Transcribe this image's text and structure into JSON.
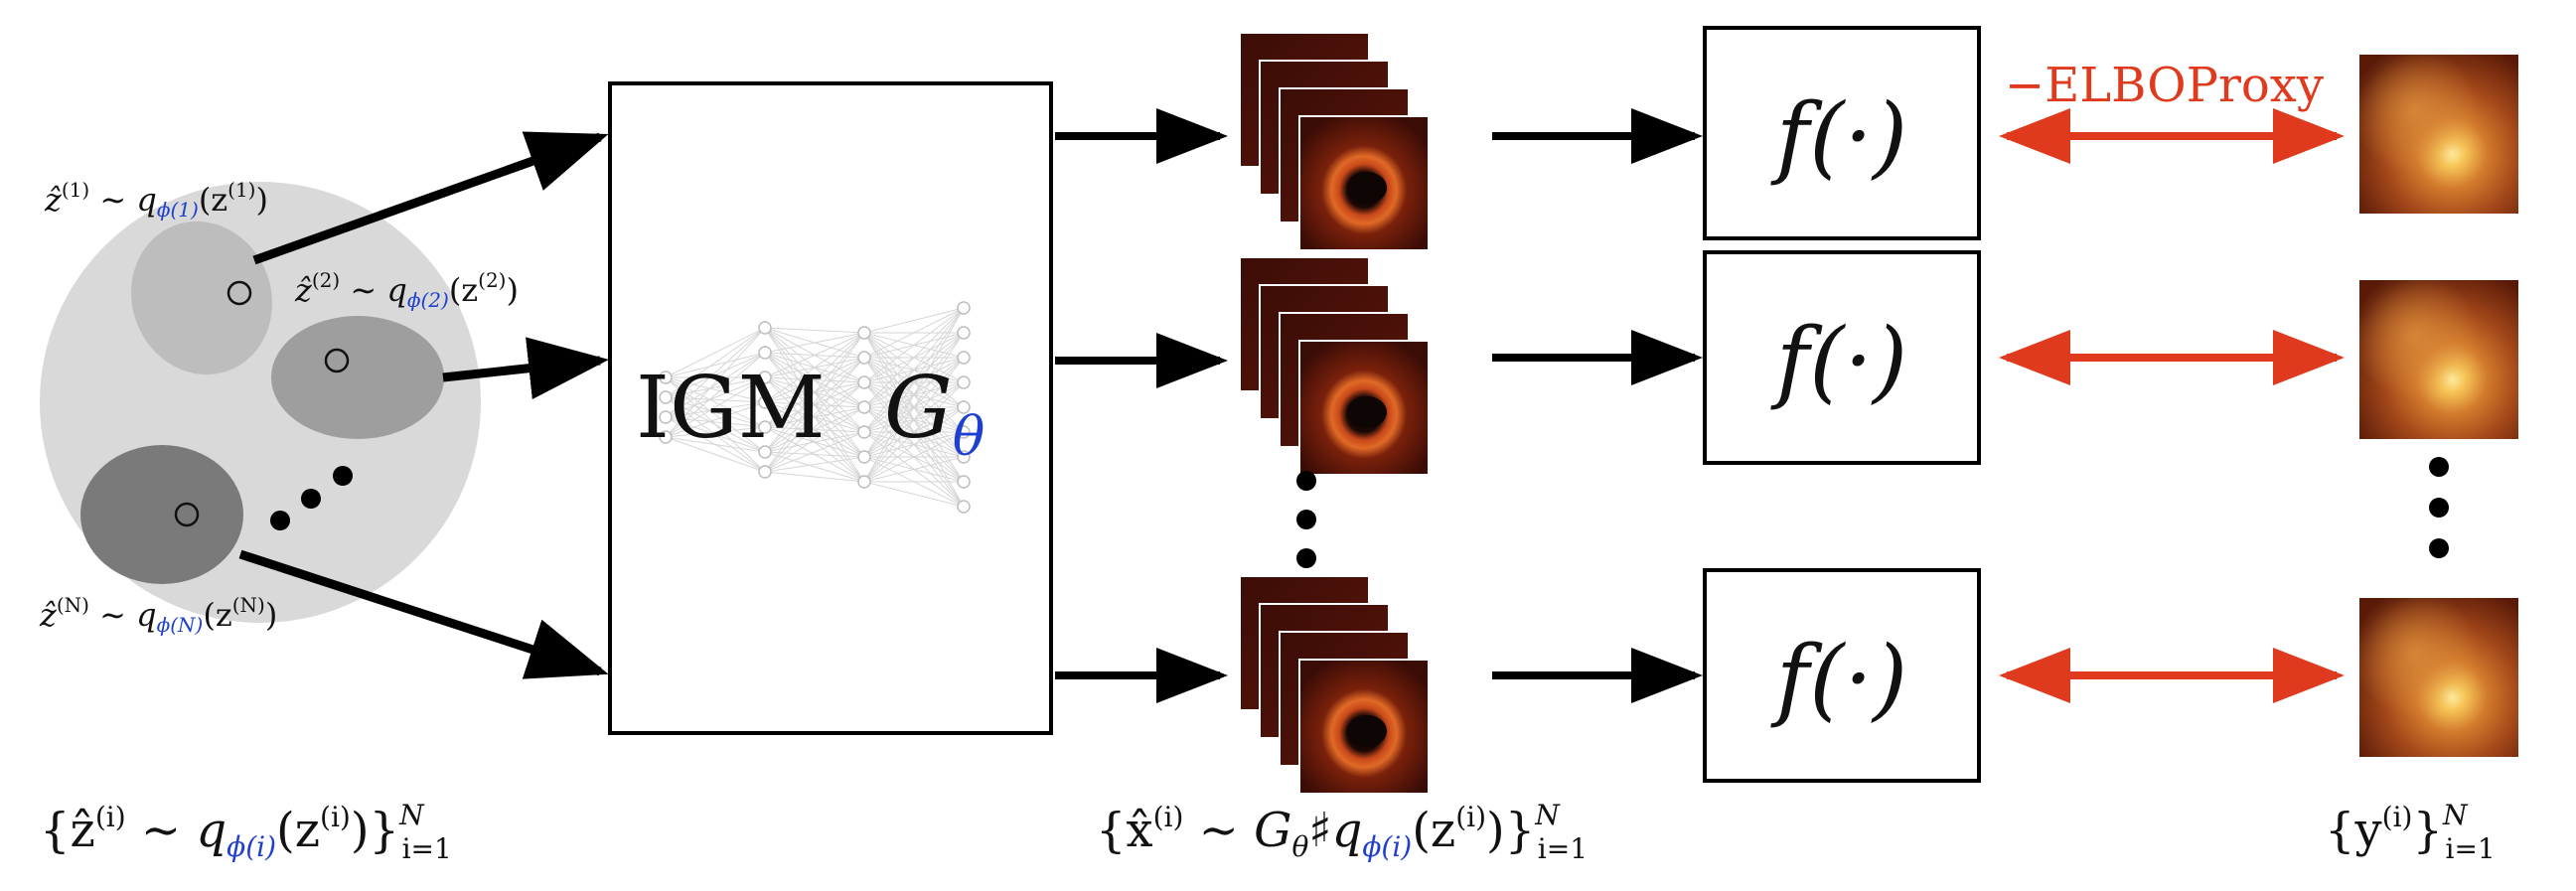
{
  "colors": {
    "arrow_black": "#000000",
    "arrow_red": "#e03a1e",
    "latent_bg": "#d9d9d9",
    "ellipse_1": "#bdbdbd",
    "ellipse_2": "#9e9e9e",
    "ellipse_3": "#7a7a7a",
    "phi_blue": "#1f3fd0"
  },
  "latent": {
    "label_1_pre": "ẑ",
    "label_1_sup": "(1)",
    "label_1_mid": " ∼ q",
    "label_1_phi": "ϕ(1)",
    "label_1_post": "(z",
    "label_1_post_sup": "(1)",
    "label_1_close": ")",
    "label_2_pre": "ẑ",
    "label_2_sup": "(2)",
    "label_2_mid": " ∼ q",
    "label_2_phi": "ϕ(2)",
    "label_2_post": "(z",
    "label_2_post_sup": "(2)",
    "label_2_close": ")",
    "label_n_pre": "ẑ",
    "label_n_sup": "(N)",
    "label_n_mid": " ∼ q",
    "label_n_phi": "ϕ(N)",
    "label_n_post": "(z",
    "label_n_post_sup": "(N)",
    "label_n_close": ")",
    "set_open": "{ẑ",
    "set_sup": "(i)",
    "set_mid": " ∼ q",
    "set_phi": "ϕ(i)",
    "set_post": "(z",
    "set_post_sup": "(i)",
    "set_close": ")}",
    "set_range_sup": "N",
    "set_range_sub": "i=1"
  },
  "generator": {
    "label": "IGM",
    "symbol": "G",
    "symbol_sub": "θ"
  },
  "samples": {
    "set_open": "{x̂",
    "set_sup": "(i)",
    "set_mid": " ∼ G",
    "set_g_sub": "θ",
    "set_push": "♯q",
    "set_phi": "ϕ(i)",
    "set_post": "(z",
    "set_post_sup": "(i)",
    "set_close": ")}",
    "set_range_sup": "N",
    "set_range_sub": "i=1"
  },
  "forward": {
    "label": "f(·)"
  },
  "loss": {
    "label": "−ELBOProxy"
  },
  "observations": {
    "set_open": "{y",
    "set_sup": "(i)",
    "set_close": "}",
    "set_range_sup": "N",
    "set_range_sub": "i=1"
  }
}
